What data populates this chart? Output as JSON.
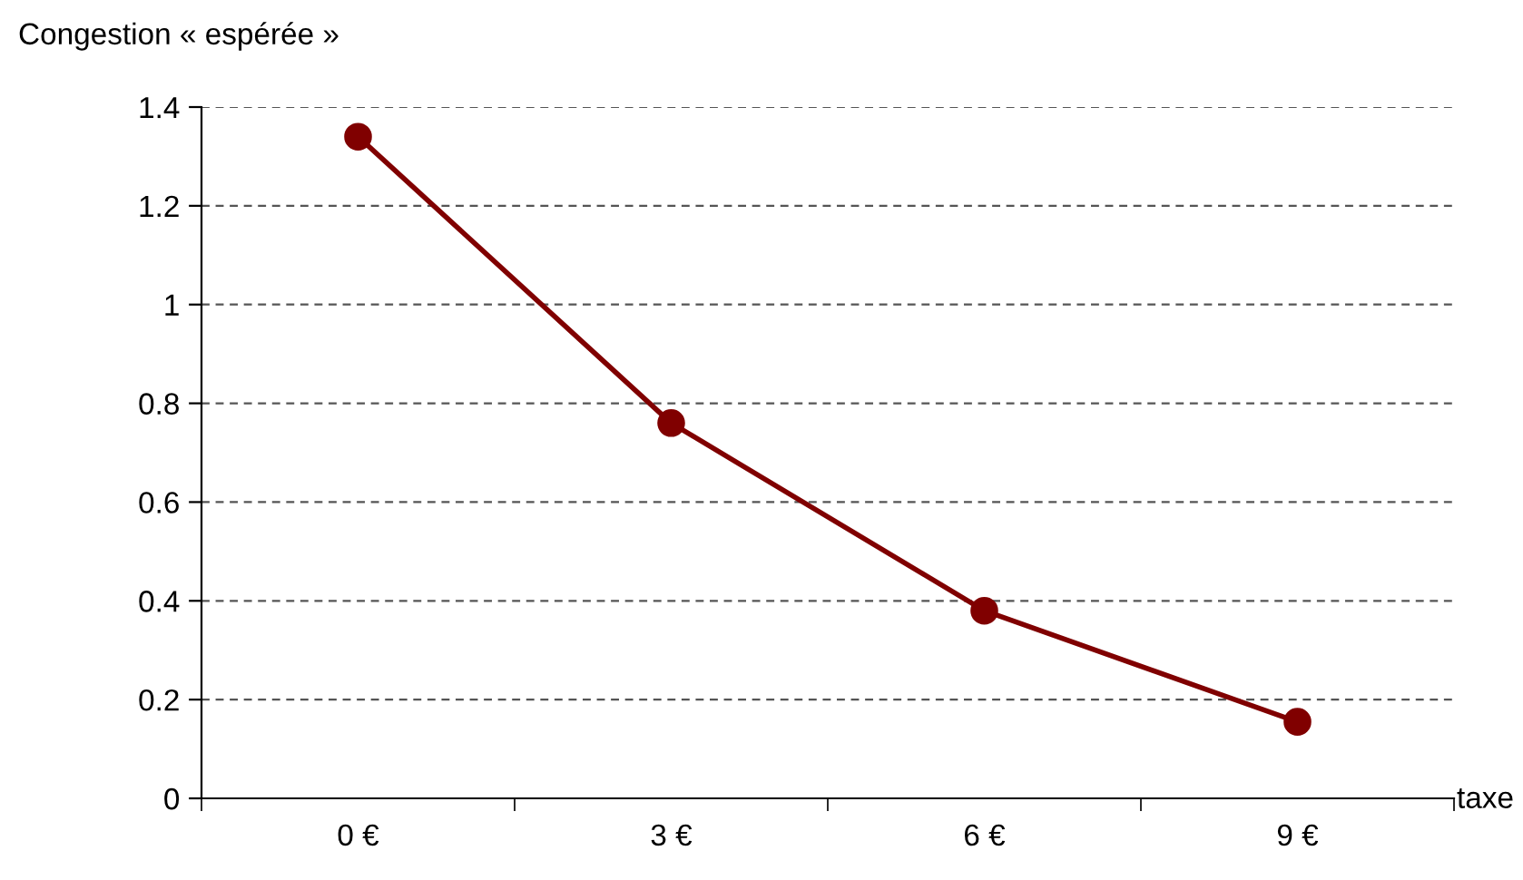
{
  "chart_data": {
    "type": "line",
    "ylabel": "Congestion « espérée »",
    "xlabel": "taxe",
    "categories": [
      "0 €",
      "3 €",
      "6 €",
      "9 €"
    ],
    "series": [
      {
        "color": "#800000",
        "values": [
          1.34,
          0.76,
          0.38,
          0.155
        ]
      }
    ],
    "ylim": [
      0,
      1.4
    ],
    "yticks": [
      0,
      0.2,
      0.4,
      0.6,
      0.8,
      1,
      1.2,
      1.4
    ],
    "grid": "y",
    "marker": "circle",
    "line_style": "solid",
    "legend": false
  }
}
